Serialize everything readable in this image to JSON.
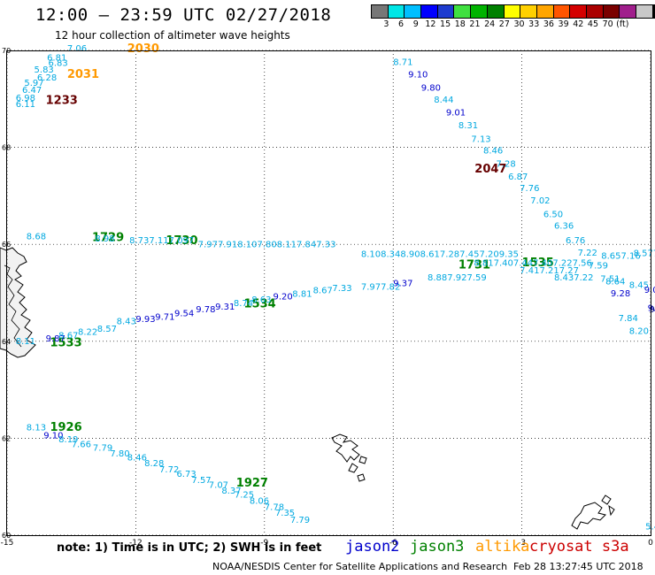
{
  "header": {
    "title": "12:00 – 23:59 UTC 02/27/2018",
    "subtitle": "12 hour collection of altimeter wave heights"
  },
  "legend": {
    "colors": [
      "#777777",
      "#00e6e6",
      "#00bfff",
      "#0000ff",
      "#1e3ccf",
      "#40e040",
      "#00b300",
      "#008000",
      "#ffff00",
      "#ffd000",
      "#ffa500",
      "#ff5500",
      "#d40000",
      "#aa0000",
      "#7a0000",
      "#a01e8c",
      "#c8c8c8",
      "#000000"
    ],
    "labels": [
      "3",
      "6",
      "9",
      "12",
      "15",
      "18",
      "21",
      "24",
      "27",
      "30",
      "33",
      "36",
      "39",
      "42",
      "45",
      "70",
      "(ft)"
    ]
  },
  "axes": {
    "lon_ticks": [
      "-15",
      "-12",
      "-9",
      "-6",
      "-3",
      "0"
    ],
    "lat_ticks": [
      "70",
      "68",
      "66",
      "64",
      "62",
      "60"
    ],
    "lon_range": [
      -15,
      0
    ],
    "lat_range": [
      60,
      70
    ]
  },
  "colors": {
    "jason2": "#0000cc",
    "jason3": "#008000",
    "altika": "#ff9900",
    "cryosat": "#cc0000",
    "cryosat_time": "#660000",
    "cyan": "#00a8e0",
    "navy": "#000080"
  },
  "labels": [
    {
      "text": "2030",
      "lon": -12.2,
      "lat": 69.96,
      "c": "altika",
      "time": true
    },
    {
      "text": "2031",
      "lon": -13.6,
      "lat": 69.43,
      "c": "altika",
      "time": true
    },
    {
      "text": "1233",
      "lon": -14.1,
      "lat": 68.9,
      "c": "cryosat_time",
      "time": true
    },
    {
      "text": "2047",
      "lon": -4.1,
      "lat": 67.48,
      "c": "cryosat_time",
      "time": true
    },
    {
      "text": "1729",
      "lon": -13.02,
      "lat": 66.07,
      "c": "jason3",
      "time": true
    },
    {
      "text": "1730",
      "lon": -11.3,
      "lat": 66.0,
      "c": "jason3",
      "time": true
    },
    {
      "text": "1731",
      "lon": -4.48,
      "lat": 65.5,
      "c": "jason3",
      "time": true
    },
    {
      "text": "1535",
      "lon": -3.0,
      "lat": 65.55,
      "c": "jason3",
      "time": true
    },
    {
      "text": "1534",
      "lon": -9.48,
      "lat": 64.7,
      "c": "jason3",
      "time": true
    },
    {
      "text": "1533",
      "lon": -14.0,
      "lat": 63.9,
      "c": "jason3",
      "time": true
    },
    {
      "text": "1926",
      "lon": -14.0,
      "lat": 62.15,
      "c": "jason3",
      "time": true
    },
    {
      "text": "1927",
      "lon": -9.66,
      "lat": 61.0,
      "c": "jason3",
      "time": true
    },
    {
      "text": "7.06",
      "lon": -13.6,
      "lat": 69.98,
      "c": "cyan"
    },
    {
      "text": "6.81",
      "lon": -14.07,
      "lat": 69.79,
      "c": "cyan"
    },
    {
      "text": "6.83",
      "lon": -14.04,
      "lat": 69.68,
      "c": "cyan"
    },
    {
      "text": "5.83",
      "lon": -14.37,
      "lat": 69.54,
      "c": "cyan"
    },
    {
      "text": "5.97",
      "lon": -14.6,
      "lat": 69.27,
      "c": "cyan"
    },
    {
      "text": "6.47",
      "lon": -14.65,
      "lat": 69.12,
      "c": "cyan"
    },
    {
      "text": "6.28",
      "lon": -14.3,
      "lat": 69.38,
      "c": "cyan"
    },
    {
      "text": "6.98",
      "lon": -14.8,
      "lat": 68.96,
      "c": "cyan"
    },
    {
      "text": "6.11",
      "lon": -14.8,
      "lat": 68.83,
      "c": "cyan"
    },
    {
      "text": "8.71",
      "lon": -6.0,
      "lat": 69.7,
      "c": "cyan"
    },
    {
      "text": "9.10",
      "lon": -5.65,
      "lat": 69.44,
      "c": "jason2"
    },
    {
      "text": "9.80",
      "lon": -5.35,
      "lat": 69.17,
      "c": "jason2"
    },
    {
      "text": "8.44",
      "lon": -5.05,
      "lat": 68.92,
      "c": "cyan"
    },
    {
      "text": "9.01",
      "lon": -4.77,
      "lat": 68.66,
      "c": "jason2"
    },
    {
      "text": "8.31",
      "lon": -4.48,
      "lat": 68.39,
      "c": "cyan"
    },
    {
      "text": "7.13",
      "lon": -4.18,
      "lat": 68.11,
      "c": "cyan"
    },
    {
      "text": "8.46",
      "lon": -3.9,
      "lat": 67.87,
      "c": "cyan"
    },
    {
      "text": "7.28",
      "lon": -3.6,
      "lat": 67.6,
      "c": "cyan"
    },
    {
      "text": "6.87",
      "lon": -3.32,
      "lat": 67.34,
      "c": "cyan"
    },
    {
      "text": "7.76",
      "lon": -3.05,
      "lat": 67.1,
      "c": "cyan"
    },
    {
      "text": "7.02",
      "lon": -2.8,
      "lat": 66.84,
      "c": "cyan"
    },
    {
      "text": "6.50",
      "lon": -2.5,
      "lat": 66.56,
      "c": "cyan"
    },
    {
      "text": "6.36",
      "lon": -2.25,
      "lat": 66.32,
      "c": "cyan"
    },
    {
      "text": "6.76",
      "lon": -1.98,
      "lat": 66.02,
      "c": "cyan"
    },
    {
      "text": "7.22",
      "lon": -1.7,
      "lat": 65.77,
      "c": "cyan"
    },
    {
      "text": "7.59",
      "lon": -1.45,
      "lat": 65.5,
      "c": "cyan"
    },
    {
      "text": "7.51",
      "lon": -1.17,
      "lat": 65.23,
      "c": "cyan"
    },
    {
      "text": "9.28",
      "lon": -0.93,
      "lat": 64.93,
      "c": "jason2"
    },
    {
      "text": "7.84",
      "lon": -0.75,
      "lat": 64.42,
      "c": "cyan"
    },
    {
      "text": "8.20",
      "lon": -0.5,
      "lat": 64.15,
      "c": "cyan"
    },
    {
      "text": "8.68",
      "lon": -14.55,
      "lat": 66.1,
      "c": "cyan"
    },
    {
      "text": "8.98",
      "lon": -12.95,
      "lat": 66.06,
      "c": "cyan"
    },
    {
      "text": "8.737.117.097",
      "lon": -12.15,
      "lat": 66.02,
      "c": "cyan"
    },
    {
      "text": "7.977.918.107.808.117.847.33",
      "lon": -10.55,
      "lat": 65.94,
      "c": "cyan"
    },
    {
      "text": "8.108.348.908.617.287.457.209.35",
      "lon": -6.75,
      "lat": 65.74,
      "c": "cyan"
    },
    {
      "text": "8.817.407.447.407.227.56",
      "lon": -4.12,
      "lat": 65.56,
      "c": "cyan"
    },
    {
      "text": "7.417.217.27",
      "lon": -3.05,
      "lat": 65.4,
      "c": "cyan"
    },
    {
      "text": "8.657.16",
      "lon": -1.15,
      "lat": 65.7,
      "c": "cyan"
    },
    {
      "text": "8.577.4",
      "lon": -0.4,
      "lat": 65.76,
      "c": "cyan"
    },
    {
      "text": "8.437.22",
      "lon": -2.25,
      "lat": 65.26,
      "c": "cyan"
    },
    {
      "text": "8.64",
      "lon": -1.05,
      "lat": 65.17,
      "c": "cyan"
    },
    {
      "text": "8.45",
      "lon": -0.5,
      "lat": 65.1,
      "c": "cyan"
    },
    {
      "text": "8.11",
      "lon": -14.8,
      "lat": 63.94,
      "c": "cyan"
    },
    {
      "text": "9.87",
      "lon": -14.1,
      "lat": 64.0,
      "c": "jason2"
    },
    {
      "text": "8.67",
      "lon": -13.8,
      "lat": 64.06,
      "c": "cyan"
    },
    {
      "text": "8.22",
      "lon": -13.35,
      "lat": 64.13,
      "c": "cyan"
    },
    {
      "text": "8.57",
      "lon": -12.9,
      "lat": 64.2,
      "c": "cyan"
    },
    {
      "text": "8.43",
      "lon": -12.45,
      "lat": 64.35,
      "c": "cyan"
    },
    {
      "text": "9.93",
      "lon": -12.0,
      "lat": 64.4,
      "c": "jason2"
    },
    {
      "text": "9.71",
      "lon": -11.55,
      "lat": 64.44,
      "c": "jason2"
    },
    {
      "text": "9.54",
      "lon": -11.1,
      "lat": 64.52,
      "c": "jason2"
    },
    {
      "text": "9.78",
      "lon": -10.6,
      "lat": 64.6,
      "c": "jason2"
    },
    {
      "text": "9.31",
      "lon": -10.15,
      "lat": 64.65,
      "c": "jason2"
    },
    {
      "text": "8.74",
      "lon": -9.72,
      "lat": 64.73,
      "c": "cyan"
    },
    {
      "text": "8.63",
      "lon": -9.3,
      "lat": 64.8,
      "c": "cyan"
    },
    {
      "text": "9.20",
      "lon": -8.8,
      "lat": 64.86,
      "c": "jason2"
    },
    {
      "text": "8.81",
      "lon": -8.35,
      "lat": 64.92,
      "c": "cyan"
    },
    {
      "text": "8.67",
      "lon": -7.87,
      "lat": 64.99,
      "c": "cyan"
    },
    {
      "text": "7.33",
      "lon": -7.42,
      "lat": 65.04,
      "c": "cyan"
    },
    {
      "text": "7.977.82",
      "lon": -6.75,
      "lat": 65.06,
      "c": "cyan"
    },
    {
      "text": "9.37",
      "lon": -6.0,
      "lat": 65.14,
      "c": "jason2"
    },
    {
      "text": "8.887.927.59",
      "lon": -5.2,
      "lat": 65.26,
      "c": "cyan"
    },
    {
      "text": "9.05",
      "lon": -0.15,
      "lat": 65.0,
      "c": "jason2"
    },
    {
      "text": "9.07",
      "lon": -0.07,
      "lat": 64.63,
      "c": "jason2"
    },
    {
      "text": "9",
      "lon": -0.03,
      "lat": 64.6,
      "c": "navy"
    },
    {
      "text": "8.13",
      "lon": -14.55,
      "lat": 62.16,
      "c": "cyan"
    },
    {
      "text": "9.10",
      "lon": -14.15,
      "lat": 62.0,
      "c": "jason2"
    },
    {
      "text": "8.19",
      "lon": -13.8,
      "lat": 61.92,
      "c": "cyan"
    },
    {
      "text": "7.66",
      "lon": -13.5,
      "lat": 61.82,
      "c": "cyan"
    },
    {
      "text": "7.79",
      "lon": -13.0,
      "lat": 61.74,
      "c": "cyan"
    },
    {
      "text": "7.80",
      "lon": -12.6,
      "lat": 61.62,
      "c": "cyan"
    },
    {
      "text": "8.46",
      "lon": -12.2,
      "lat": 61.54,
      "c": "cyan"
    },
    {
      "text": "8.28",
      "lon": -11.8,
      "lat": 61.42,
      "c": "cyan"
    },
    {
      "text": "7.72",
      "lon": -11.45,
      "lat": 61.3,
      "c": "cyan"
    },
    {
      "text": "6.73",
      "lon": -11.05,
      "lat": 61.2,
      "c": "cyan"
    },
    {
      "text": "7.57",
      "lon": -10.7,
      "lat": 61.08,
      "c": "cyan"
    },
    {
      "text": "7.07",
      "lon": -10.3,
      "lat": 60.98,
      "c": "cyan"
    },
    {
      "text": "8.37",
      "lon": -10.0,
      "lat": 60.86,
      "c": "cyan"
    },
    {
      "text": "7.25",
      "lon": -9.7,
      "lat": 60.78,
      "c": "cyan"
    },
    {
      "text": "8.06",
      "lon": -9.35,
      "lat": 60.65,
      "c": "cyan"
    },
    {
      "text": "7.78",
      "lon": -9.0,
      "lat": 60.52,
      "c": "cyan"
    },
    {
      "text": "7.35",
      "lon": -8.75,
      "lat": 60.4,
      "c": "cyan"
    },
    {
      "text": "7.79",
      "lon": -8.4,
      "lat": 60.26,
      "c": "cyan"
    },
    {
      "text": "5.4",
      "lon": -0.12,
      "lat": 60.12,
      "c": "cyan"
    }
  ],
  "footer": {
    "note": "note:  1) Time is in UTC; 2) SWH is in feet",
    "satellites": [
      {
        "name": "jason2",
        "c": "jason2"
      },
      {
        "name": "jason3",
        "c": "jason3"
      },
      {
        "name": "altika",
        "c": "altika"
      },
      {
        "name": "cryosat s3a",
        "c": "cryosat"
      }
    ],
    "credit": "NOAA/NESDIS Center for Satellite Applications and Research",
    "generated": "Feb 28 13:27:45 UTC 2018"
  }
}
